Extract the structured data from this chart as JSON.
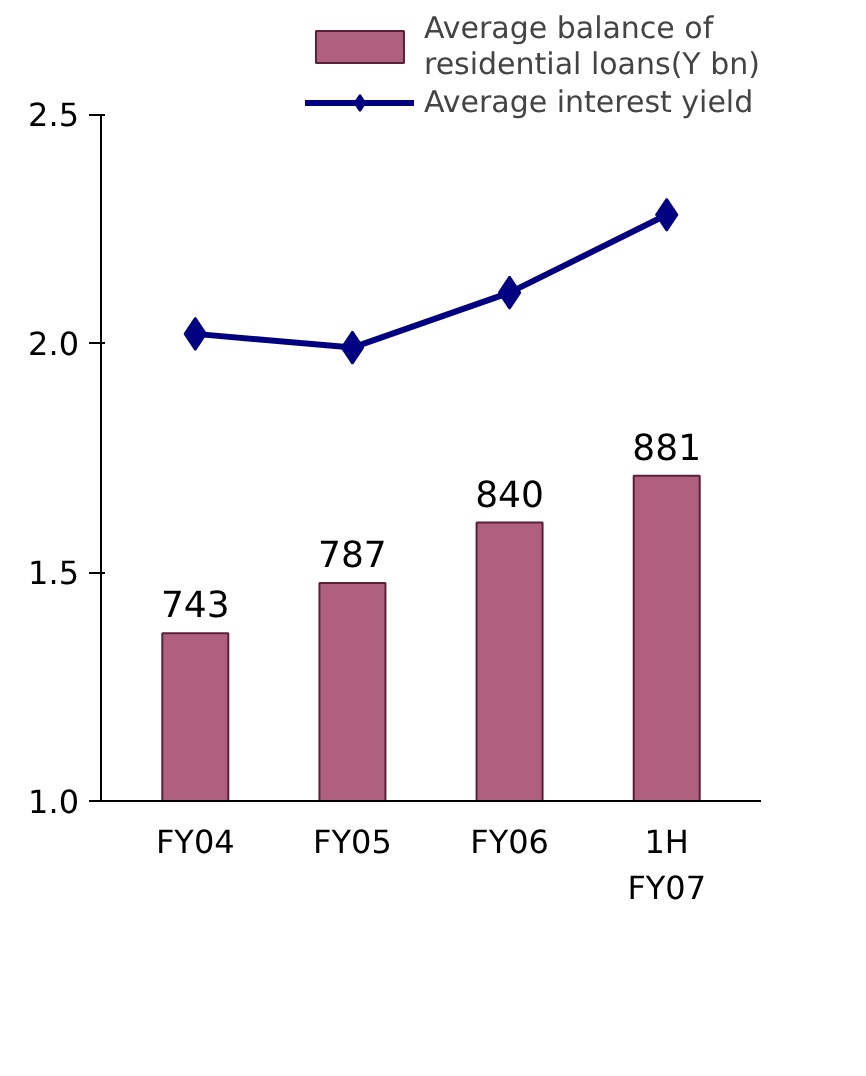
{
  "chart_data": {
    "type": "bar",
    "categories": [
      "FY04",
      "FY05",
      "FY06",
      "1H\nFY07"
    ],
    "series": [
      {
        "name": "Average balance of\nresidential loans(Y bn)",
        "axis": "y2",
        "color": "#b0607f",
        "values": [
          743,
          787,
          840,
          881
        ],
        "value_labels": [
          "743",
          "787",
          "840",
          "881"
        ]
      },
      {
        "name": "Average interest yield",
        "type": "line",
        "color": "#000080",
        "values": [
          2.02,
          1.99,
          2.11,
          2.28
        ]
      }
    ],
    "ylim": [
      1.0,
      2.5
    ],
    "yticks": [
      {
        "value": 1.0,
        "label": "1.0"
      },
      {
        "value": 1.5,
        "label": "1.5"
      },
      {
        "value": 2.0,
        "label": "2.0"
      },
      {
        "value": 2.5,
        "label": "2.5"
      }
    ],
    "y2lim": [
      596,
      1198
    ],
    "marker": "diamond",
    "line_style": "solid",
    "grid": false,
    "legend": "top right"
  }
}
